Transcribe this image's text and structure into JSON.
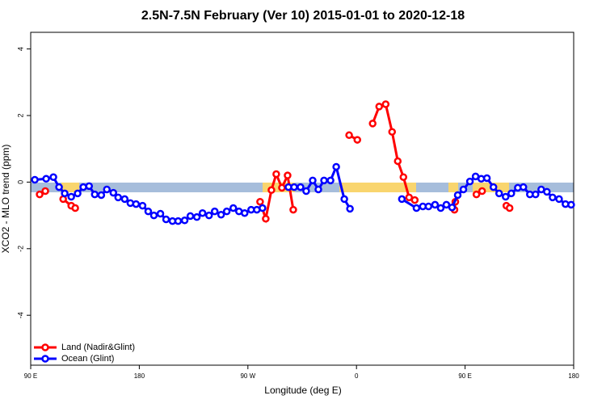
{
  "chart_data": {
    "type": "line",
    "title": "2.5N-7.5N February (Ver 10)   2015-01-01 to 2020-12-18",
    "x_label": "Longitude (deg E)",
    "y_label": "XCO2 - MLO trend (ppm)",
    "xlim": [
      90,
      540
    ],
    "ylim": [
      -5.5,
      4.5
    ],
    "xticks": [
      {
        "value": 90,
        "label": "90 E"
      },
      {
        "value": 180,
        "label": "180"
      },
      {
        "value": 270,
        "label": "90 W"
      },
      {
        "value": 360,
        "label": "0"
      },
      {
        "value": 450,
        "label": "90 E"
      },
      {
        "value": 540,
        "label": "180"
      }
    ],
    "yticks": [
      -4,
      -2,
      0,
      2,
      4
    ],
    "legend": "bottom-left",
    "series": [
      {
        "name": "Land (Nadir&Glint)",
        "color": "#ff0000",
        "x": [
          97.4,
          102.1,
          null,
          116.9,
          123.6,
          126.9,
          null,
          280.1,
          284.8,
          289.5,
          293.5,
          298.2,
          302.9,
          307.6,
          null,
          353.9,
          360.7,
          null,
          373.4,
          378.8,
          384.2,
          389.5,
          394.2,
          398.9,
          403.6,
          408.3,
          null,
          441.2,
          441.9,
          null,
          459.4,
          464.1,
          null,
          484.2,
          486.9
        ],
        "values": [
          -0.37,
          -0.27,
          null,
          -0.51,
          -0.71,
          -0.78,
          null,
          -0.59,
          -1.1,
          -0.24,
          0.24,
          -0.17,
          0.2,
          -0.83,
          null,
          1.41,
          1.27,
          null,
          1.76,
          2.27,
          2.34,
          1.51,
          0.63,
          0.15,
          -0.46,
          -0.54,
          null,
          -0.83,
          -0.59,
          null,
          -0.37,
          -0.27,
          null,
          -0.71,
          -0.78
        ]
      },
      {
        "name": "Ocean (Glint)",
        "color": "#0000ff",
        "x": [
          93.4,
          102.8,
          108.8,
          113.5,
          118.2,
          123.6,
          128.9,
          133.6,
          138.4,
          143.1,
          148.5,
          153.1,
          158.5,
          162.5,
          167.9,
          172.6,
          177.3,
          182.7,
          187.4,
          192.1,
          197.5,
          202.2,
          207.5,
          212.2,
          217.6,
          222.3,
          227.7,
          232.4,
          237.8,
          242.5,
          247.8,
          252.5,
          257.9,
          262.6,
          267.3,
          272.7,
          277.4,
          282.1,
          null,
          303.6,
          308.3,
          313.6,
          318.3,
          323.7,
          328.4,
          333.1,
          338.5,
          343.2,
          349.9,
          354.6,
          null,
          397.6,
          409.7,
          415.0,
          419.7,
          425.1,
          429.8,
          434.5,
          439.2,
          443.9,
          448.6,
          454.0,
          458.7,
          463.4,
          468.1,
          473.5,
          478.2,
          483.6,
          488.3,
          493.7,
          498.3,
          503.7,
          508.4,
          513.1,
          517.8,
          522.5,
          527.9,
          533.2,
          537.9
        ],
        "values": [
          0.07,
          0.1,
          0.15,
          -0.15,
          -0.34,
          -0.44,
          -0.34,
          -0.15,
          -0.12,
          -0.37,
          -0.39,
          -0.22,
          -0.32,
          -0.46,
          -0.51,
          -0.63,
          -0.66,
          -0.71,
          -0.88,
          -1.0,
          -0.95,
          -1.12,
          -1.17,
          -1.17,
          -1.15,
          -1.02,
          -1.05,
          -0.93,
          -1.0,
          -0.88,
          -0.98,
          -0.88,
          -0.78,
          -0.88,
          -0.93,
          -0.83,
          -0.83,
          -0.78,
          null,
          -0.15,
          -0.15,
          -0.15,
          -0.27,
          0.05,
          -0.22,
          0.05,
          0.05,
          0.46,
          -0.51,
          -0.8,
          null,
          -0.51,
          -0.78,
          -0.73,
          -0.73,
          -0.68,
          -0.78,
          -0.68,
          -0.76,
          -0.39,
          -0.22,
          0.02,
          0.17,
          0.1,
          0.12,
          -0.15,
          -0.34,
          -0.44,
          -0.34,
          -0.17,
          -0.15,
          -0.37,
          -0.37,
          -0.22,
          -0.29,
          -0.46,
          -0.51,
          -0.66,
          -0.68
        ]
      }
    ]
  }
}
